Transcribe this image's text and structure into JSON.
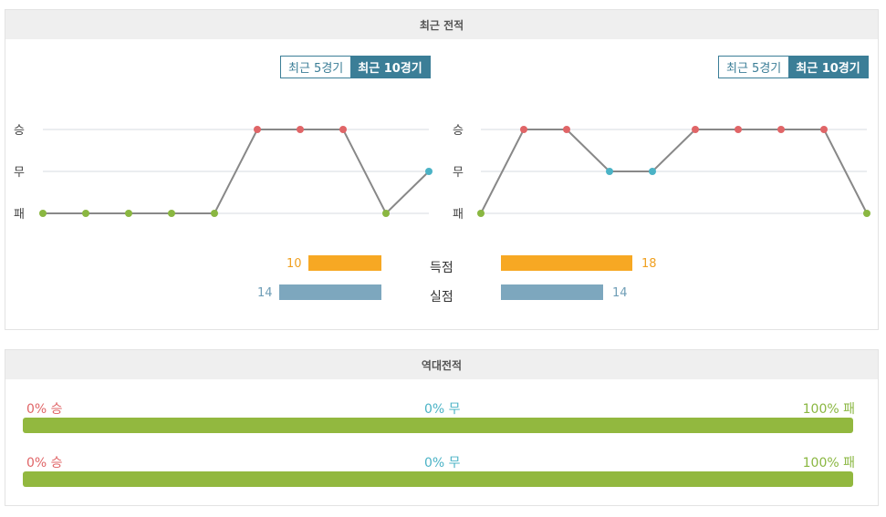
{
  "recent": {
    "title": "최근 전적",
    "toggle": {
      "five": "최근 5경기",
      "ten": "최근 10경기"
    },
    "y_labels": [
      "승",
      "무",
      "패"
    ],
    "colors": {
      "win": "#e06567",
      "draw": "#4bb3c6",
      "loss": "#8ab741",
      "line": "#888888"
    },
    "scored_label": "득점",
    "conceded_label": "실점",
    "max_goals": 20,
    "colors_bars": {
      "scored": "#f7a823",
      "conceded": "#7da7be",
      "scored_text": "#f0a020",
      "conceded_text": "#6e9db6"
    }
  },
  "chart_data": [
    {
      "type": "line",
      "x": [
        1,
        2,
        3,
        4,
        5,
        6,
        7,
        8,
        9,
        10
      ],
      "results": [
        "패",
        "패",
        "패",
        "패",
        "패",
        "승",
        "승",
        "승",
        "패",
        "무"
      ],
      "y_categories": [
        "승",
        "무",
        "패"
      ],
      "grid": true
    },
    {
      "type": "line",
      "x": [
        1,
        2,
        3,
        4,
        5,
        6,
        7,
        8,
        9,
        10
      ],
      "results": [
        "패",
        "승",
        "승",
        "무",
        "무",
        "승",
        "승",
        "승",
        "승",
        "패"
      ],
      "y_categories": [
        "승",
        "무",
        "패"
      ],
      "grid": true
    },
    {
      "type": "bar",
      "categories": [
        "득점",
        "실점"
      ],
      "series": [
        {
          "values": [
            10,
            14
          ]
        },
        {
          "values": [
            18,
            14
          ]
        }
      ]
    }
  ],
  "h2h": {
    "title": "역대전적",
    "rows": [
      {
        "win_text": "0% 승",
        "draw_text": "0% 무",
        "loss_text": "100% 패",
        "win": 0,
        "draw": 0,
        "loss": 100
      },
      {
        "win_text": "0% 승",
        "draw_text": "0% 무",
        "loss_text": "100% 패",
        "win": 0,
        "draw": 0,
        "loss": 100
      }
    ],
    "colors": {
      "win": "#e06567",
      "draw": "#4bb3c6",
      "loss": "#92b83f"
    }
  }
}
